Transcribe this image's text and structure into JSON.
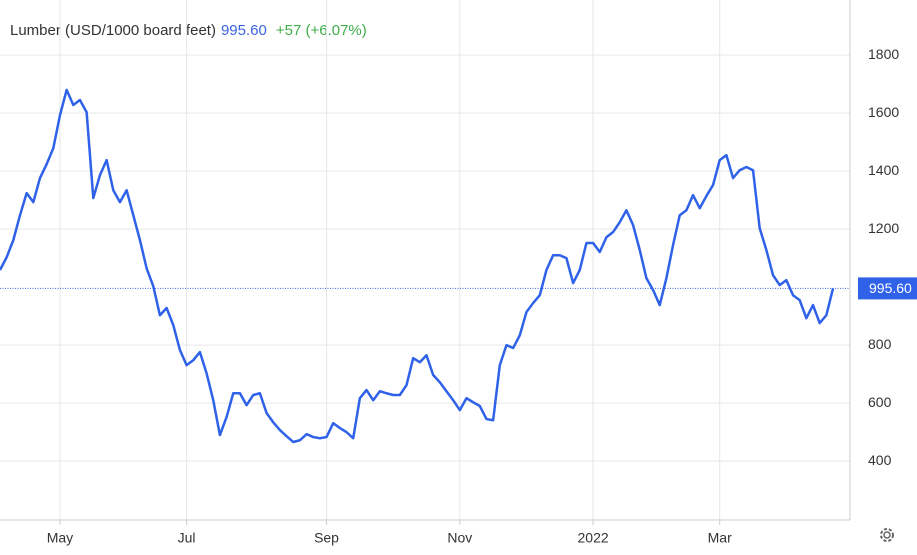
{
  "chart_data": {
    "type": "line",
    "title": "Lumber (USD/1000 board feet)",
    "last": {
      "value": 995.6,
      "label": "995.60"
    },
    "change": "+57 (+6.07%)",
    "color": "#2f62e8",
    "categories": [
      null,
      null,
      null,
      null,
      null,
      null,
      null,
      null,
      null,
      "May",
      null,
      null,
      null,
      null,
      null,
      null,
      null,
      null,
      null,
      null,
      null,
      null,
      null,
      null,
      null,
      null,
      null,
      null,
      "Jul",
      null,
      null,
      null,
      null,
      null,
      null,
      null,
      null,
      null,
      null,
      null,
      null,
      null,
      null,
      null,
      null,
      null,
      null,
      null,
      null,
      "Sep",
      null,
      null,
      null,
      null,
      null,
      null,
      null,
      null,
      null,
      null,
      null,
      null,
      null,
      null,
      null,
      null,
      null,
      null,
      null,
      "Nov",
      null,
      null,
      null,
      null,
      null,
      null,
      null,
      null,
      null,
      null,
      null,
      null,
      null,
      null,
      null,
      null,
      null,
      null,
      null,
      "2022",
      null,
      null,
      null,
      null,
      null,
      null,
      null,
      null,
      null,
      null,
      null,
      null,
      null,
      null,
      null,
      null,
      null,
      null,
      "Mar",
      null,
      null,
      null,
      null,
      null,
      null,
      null,
      null,
      null,
      null,
      null,
      null,
      null,
      null,
      null,
      null,
      null
    ],
    "values": [
      1059,
      1103,
      1162,
      1248,
      1324,
      1293,
      1376,
      1424,
      1479,
      1593,
      1680,
      1628,
      1645,
      1603,
      1307,
      1386,
      1438,
      1334,
      1293,
      1334,
      1248,
      1162,
      1065,
      1003,
      903,
      928,
      869,
      783,
      731,
      748,
      776,
      703,
      610,
      490,
      552,
      634,
      634,
      593,
      628,
      634,
      566,
      534,
      507,
      486,
      466,
      472,
      493,
      483,
      479,
      483,
      531,
      514,
      500,
      479,
      617,
      645,
      610,
      641,
      634,
      628,
      628,
      662,
      755,
      741,
      765,
      697,
      672,
      641,
      610,
      576,
      617,
      603,
      590,
      545,
      541,
      731,
      800,
      790,
      834,
      914,
      945,
      972,
      1059,
      1110,
      1110,
      1100,
      1014,
      1059,
      1152,
      1152,
      1121,
      1172,
      1190,
      1224,
      1265,
      1214,
      1128,
      1031,
      990,
      938,
      1031,
      1145,
      1248,
      1265,
      1317,
      1272,
      1314,
      1352,
      1438,
      1455,
      1376,
      1403,
      1414,
      1403,
      1203,
      1128,
      1041,
      1007,
      1024,
      972,
      955,
      893,
      938,
      876,
      903,
      995.6
    ],
    "ylim": [
      197,
      1990
    ],
    "yticks": [
      400,
      600,
      800,
      1200,
      1400,
      1600,
      1800
    ],
    "grid": true
  }
}
